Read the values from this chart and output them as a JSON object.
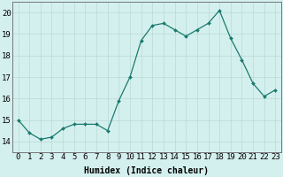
{
  "x": [
    0,
    1,
    2,
    3,
    4,
    5,
    6,
    7,
    8,
    9,
    10,
    11,
    12,
    13,
    14,
    15,
    16,
    17,
    18,
    19,
    20,
    21,
    22,
    23
  ],
  "y": [
    15.0,
    14.4,
    14.1,
    14.2,
    14.6,
    14.8,
    14.8,
    14.8,
    14.5,
    15.9,
    17.0,
    18.7,
    19.4,
    19.5,
    19.2,
    18.9,
    19.2,
    19.5,
    20.1,
    18.8,
    17.8,
    16.7,
    16.1,
    16.4
  ],
  "xlabel": "Humidex (Indice chaleur)",
  "ylim": [
    13.5,
    20.5
  ],
  "xlim": [
    -0.5,
    23.5
  ],
  "yticks": [
    14,
    15,
    16,
    17,
    18,
    19,
    20
  ],
  "xticks": [
    0,
    1,
    2,
    3,
    4,
    5,
    6,
    7,
    8,
    9,
    10,
    11,
    12,
    13,
    14,
    15,
    16,
    17,
    18,
    19,
    20,
    21,
    22,
    23
  ],
  "line_color": "#1a7a6e",
  "marker": "D",
  "marker_size": 2.0,
  "bg_color": "#d4f0ee",
  "grid_color": "#b8d8d6",
  "border_color": "#777777",
  "xlabel_fontsize": 7,
  "tick_fontsize": 6.5
}
